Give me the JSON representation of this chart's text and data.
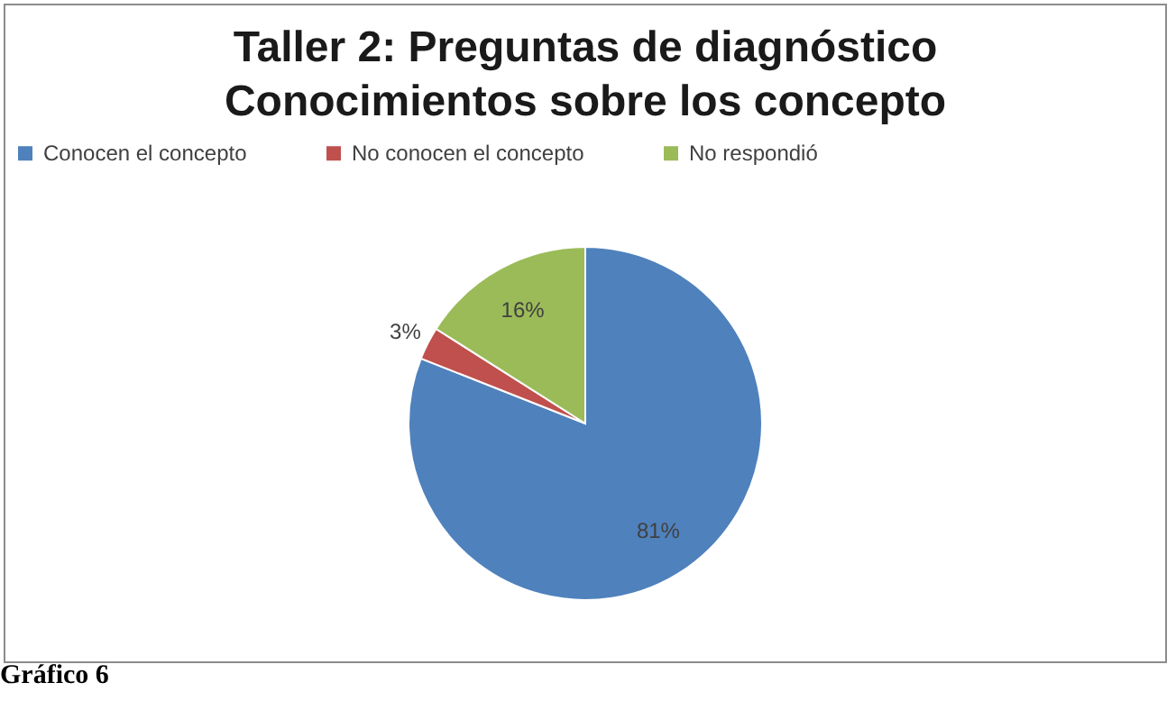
{
  "chart_data": {
    "type": "pie",
    "title": "Taller 2: Preguntas de diagnóstico\nConocimientos sobre los concepto",
    "categories": [
      "Conocen el concepto",
      "No conocen el concepto",
      "No respondió"
    ],
    "values": [
      81,
      3,
      16
    ],
    "colors": [
      "#4f81bd",
      "#c0504d",
      "#9bbb59"
    ],
    "value_labels": [
      "81%",
      "3%",
      "16%"
    ],
    "legend": "top",
    "annotations": [
      "Gráfico 6"
    ]
  }
}
